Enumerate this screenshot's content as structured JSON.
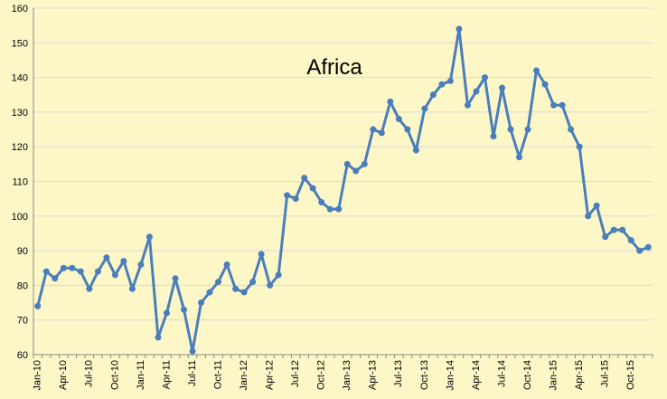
{
  "chart_data": {
    "type": "line",
    "title": "Africa",
    "xlabel": "",
    "ylabel": "",
    "ylim": [
      60,
      160
    ],
    "yticks": [
      60,
      70,
      80,
      90,
      100,
      110,
      120,
      130,
      140,
      150,
      160
    ],
    "grid": true,
    "legend": "none",
    "line_color": "#4a7ebb",
    "x_tick_labels": [
      "Jan-10",
      "Apr-10",
      "Jul-10",
      "Oct-10",
      "Jan-11",
      "Apr-11",
      "Jul-11",
      "Oct-11",
      "Jan-12",
      "Apr-12",
      "Jul-12",
      "Oct-12",
      "Jan-13",
      "Apr-13",
      "Jul-13",
      "Oct-13",
      "Jan-14",
      "Apr-14",
      "Jul-14",
      "Oct-14",
      "Jan-15",
      "Apr-15",
      "Jul-15",
      "Oct-15"
    ],
    "series": [
      {
        "values": [
          74,
          84,
          82,
          85,
          85,
          84,
          79,
          84,
          88,
          83,
          87,
          79,
          86,
          94,
          65,
          72,
          82,
          73,
          61,
          75,
          78,
          81,
          86,
          79,
          78,
          81,
          89,
          80,
          83,
          106,
          105,
          111,
          108,
          104,
          102,
          102,
          115,
          113,
          115,
          125,
          124,
          133,
          128,
          125,
          119,
          131,
          135,
          138,
          139,
          154,
          132,
          136,
          140,
          123,
          137,
          125,
          117,
          125,
          142,
          138,
          132,
          132,
          125,
          120,
          100,
          103,
          94,
          96,
          96,
          93,
          90,
          91
        ]
      }
    ]
  }
}
